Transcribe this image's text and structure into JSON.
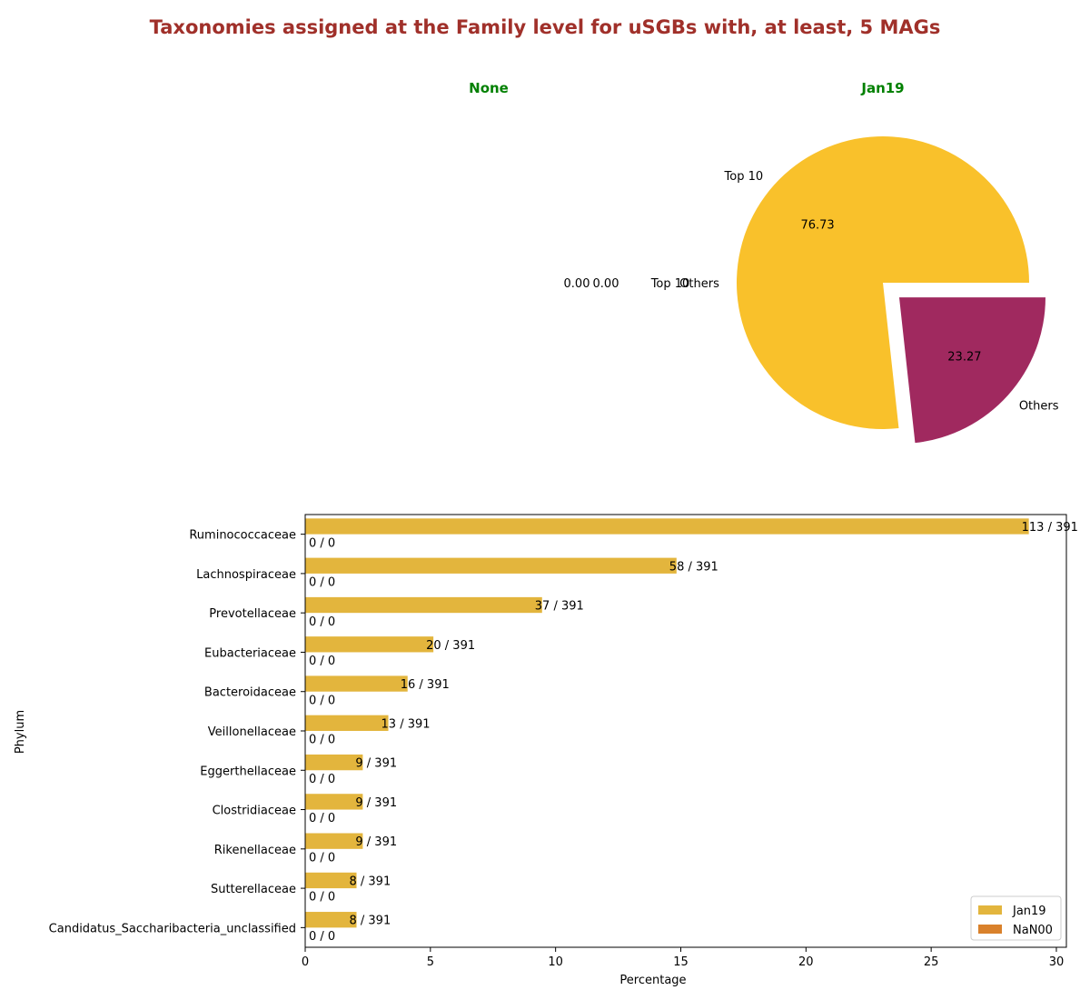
{
  "title": "Taxonomies assigned at the Family level for uSGBs with, at least, 5 MAGs",
  "colors": {
    "title": "#a0302a",
    "subtitle": "#008000",
    "pie_top10": "#f9c12b",
    "pie_others": "#a0295f",
    "bar_jan19": "#e3b53d",
    "bar_nan00": "#d9812b"
  },
  "chart_data": [
    {
      "type": "pie",
      "title": "None",
      "slices": [
        {
          "label": "Top 10",
          "value": 0.0,
          "pct_label": "0.00"
        },
        {
          "label": "Others",
          "value": 0.0,
          "pct_label": "0.00"
        }
      ]
    },
    {
      "type": "pie",
      "title": "Jan19",
      "slices": [
        {
          "label": "Top 10",
          "value": 76.73,
          "pct_label": "76.73"
        },
        {
          "label": "Others",
          "value": 23.27,
          "pct_label": "23.27",
          "exploded": true
        }
      ]
    },
    {
      "type": "bar",
      "orientation": "horizontal",
      "xlabel": "Percentage",
      "ylabel": "Phylum",
      "xlim": [
        0,
        30.4
      ],
      "xticks": [
        0,
        5,
        10,
        15,
        20,
        25,
        30
      ],
      "legend": "lower-right",
      "categories": [
        "Ruminococcaceae",
        "Lachnospiraceae",
        "Prevotellaceae",
        "Eubacteriaceae",
        "Bacteroidaceae",
        "Veillonellaceae",
        "Eggerthellaceae",
        "Clostridiaceae",
        "Rikenellaceae",
        "Sutterellaceae",
        "Candidatus_Saccharibacteria_unclassified"
      ],
      "series": [
        {
          "name": "Jan19",
          "values": [
            28.9,
            14.83,
            9.46,
            5.12,
            4.09,
            3.32,
            2.3,
            2.3,
            2.3,
            2.05,
            2.05
          ],
          "labels": [
            "113 / 391",
            "58 / 391",
            "37 / 391",
            "20 / 391",
            "16 / 391",
            "13 / 391",
            "9 / 391",
            "9 / 391",
            "9 / 391",
            "8 / 391",
            "8 / 391"
          ]
        },
        {
          "name": "NaN00",
          "values": [
            0,
            0,
            0,
            0,
            0,
            0,
            0,
            0,
            0,
            0,
            0
          ],
          "labels": [
            "0 / 0",
            "0 / 0",
            "0 / 0",
            "0 / 0",
            "0 / 0",
            "0 / 0",
            "0 / 0",
            "0 / 0",
            "0 / 0",
            "0 / 0",
            "0 / 0"
          ]
        }
      ]
    }
  ]
}
